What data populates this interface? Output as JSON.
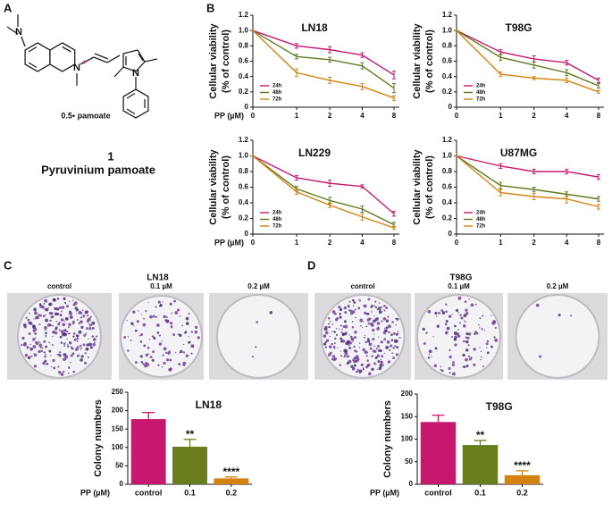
{
  "panel_labels": [
    "A",
    "B",
    "C",
    "D"
  ],
  "structure": {
    "atoms": [
      "N",
      "N",
      "N"
    ],
    "charge": "+",
    "counterion": "0.5• pamoate",
    "number": "1",
    "name": "Pyruvinium pamoate"
  },
  "photos": [
    {
      "title": "LN18",
      "labels": [
        "control",
        "0.1 µM",
        "0.2 µM"
      ]
    },
    {
      "title": "T98G",
      "labels": [
        "control",
        "0.1 µM",
        "0.2 µM"
      ]
    }
  ],
  "chart_data": [
    {
      "type": "line",
      "title": "LN18",
      "categories": [
        "0",
        "1",
        "2",
        "4",
        "8"
      ],
      "xlabel": "PP (µM)",
      "ylabel": [
        "Cellular viability",
        "(% of control)"
      ],
      "ylim": [
        0,
        1.2
      ],
      "yticks": [
        0,
        0.2,
        0.4,
        0.6,
        0.8,
        {
          "value": 1,
          "label": "1.0"
        },
        1.2
      ],
      "series": [
        {
          "name": "24h",
          "color": "#c8176f",
          "values": [
            1,
            0.8,
            0.75,
            0.68,
            0.42
          ],
          "errors": [
            0,
            0.03,
            0.04,
            0.03,
            0.05
          ]
        },
        {
          "name": "48h",
          "color": "#5e7a1e",
          "values": [
            1,
            0.66,
            0.62,
            0.54,
            0.25
          ],
          "errors": [
            0,
            0.03,
            0.03,
            0.04,
            0.06
          ]
        },
        {
          "name": "72h",
          "color": "#d4820f",
          "values": [
            1,
            0.45,
            0.35,
            0.27,
            0.12
          ],
          "errors": [
            0,
            0.05,
            0.04,
            0.04,
            0.03
          ]
        }
      ]
    },
    {
      "type": "line",
      "title": "T98G",
      "categories": [
        "0",
        "1",
        "2",
        "4",
        "8"
      ],
      "ylabel": [
        "Cellular viability",
        "(% of control)"
      ],
      "ylim": [
        0,
        1.2
      ],
      "yticks": [
        0,
        0.2,
        0.4,
        0.6,
        0.8,
        {
          "value": 1,
          "label": "1.0"
        },
        1.2
      ],
      "series": [
        {
          "name": "24h",
          "color": "#c8176f",
          "values": [
            1,
            0.72,
            0.63,
            0.58,
            0.35
          ],
          "errors": [
            0,
            0.03,
            0.04,
            0.03,
            0.03
          ]
        },
        {
          "name": "48h",
          "color": "#5e7a1e",
          "values": [
            1,
            0.65,
            0.55,
            0.45,
            0.28
          ],
          "errors": [
            0,
            0.04,
            0.04,
            0.04,
            0.03
          ]
        },
        {
          "name": "72h",
          "color": "#d4820f",
          "values": [
            1,
            0.43,
            0.38,
            0.35,
            0.2
          ],
          "errors": [
            0,
            0.03,
            0.02,
            0.03,
            0.02
          ]
        }
      ]
    },
    {
      "type": "line",
      "title": "LN229",
      "categories": [
        "0",
        "1",
        "2",
        "4",
        "8"
      ],
      "xlabel": "PP (µM)",
      "ylabel": [
        "Cellular viability",
        "(% of control)"
      ],
      "ylim": [
        0,
        1.2
      ],
      "yticks": [
        0,
        0.2,
        0.4,
        0.6,
        0.8,
        {
          "value": 1,
          "label": "1.0"
        },
        1.2
      ],
      "series": [
        {
          "name": "24h",
          "color": "#c8176f",
          "values": [
            1,
            0.72,
            0.65,
            0.61,
            0.26
          ],
          "errors": [
            0,
            0.03,
            0.04,
            0.02,
            0.03
          ]
        },
        {
          "name": "48h",
          "color": "#5e7a1e",
          "values": [
            1,
            0.58,
            0.43,
            0.32,
            0.12
          ],
          "errors": [
            0,
            0.03,
            0.04,
            0.04,
            0.03
          ]
        },
        {
          "name": "72h",
          "color": "#d4820f",
          "values": [
            1,
            0.54,
            0.37,
            0.22,
            0.08
          ],
          "errors": [
            0,
            0.03,
            0.03,
            0.04,
            0.02
          ]
        }
      ]
    },
    {
      "type": "line",
      "title": "U87MG",
      "categories": [
        "0",
        "1",
        "2",
        "4",
        "8"
      ],
      "ylabel": [
        "Cellular viability",
        "(% of control)"
      ],
      "ylim": [
        0,
        1.2
      ],
      "yticks": [
        0,
        0.2,
        0.4,
        0.6,
        0.8,
        {
          "value": 1,
          "label": "1.0"
        },
        1.2
      ],
      "series": [
        {
          "name": "24h",
          "color": "#c8176f",
          "values": [
            1,
            0.87,
            0.8,
            0.8,
            0.73
          ],
          "errors": [
            0,
            0.03,
            0.03,
            0.03,
            0.03
          ]
        },
        {
          "name": "48h",
          "color": "#5e7a1e",
          "values": [
            1,
            0.62,
            0.57,
            0.51,
            0.45
          ],
          "errors": [
            0,
            0.04,
            0.03,
            0.03,
            0.03
          ]
        },
        {
          "name": "72h",
          "color": "#d4820f",
          "values": [
            1,
            0.53,
            0.48,
            0.45,
            0.35
          ],
          "errors": [
            0,
            0.04,
            0.04,
            0.05,
            0.03
          ]
        }
      ]
    },
    {
      "type": "bar",
      "title": "LN18",
      "categories": [
        "control",
        "0.1",
        "0.2"
      ],
      "colors": [
        "#c8176f",
        "#6a7d1c",
        "#d4820f"
      ],
      "values": [
        177,
        102,
        16
      ],
      "errors": [
        18,
        20,
        4
      ],
      "annotations": [
        {
          "category": "0.1",
          "text": "**"
        },
        {
          "category": "0.2",
          "text": "****"
        }
      ],
      "xlabel": "PP (µM)",
      "ylabel": "Colony numbers",
      "ylim": [
        0,
        250
      ],
      "yticks": [
        0,
        50,
        100,
        150,
        200,
        250
      ]
    },
    {
      "type": "bar",
      "title": "T98G",
      "categories": [
        "control",
        "0.1",
        "0.2"
      ],
      "colors": [
        "#c8176f",
        "#6a7d1c",
        "#d4820f"
      ],
      "values": [
        138,
        87,
        20
      ],
      "errors": [
        15,
        10,
        10
      ],
      "annotations": [
        {
          "category": "0.1",
          "text": "**"
        },
        {
          "category": "0.2",
          "text": "****"
        }
      ],
      "xlabel": "PP (µM)",
      "ylabel": "Colony numbers",
      "ylim": [
        0,
        200
      ],
      "yticks": [
        0,
        50,
        100,
        150,
        200
      ]
    }
  ]
}
